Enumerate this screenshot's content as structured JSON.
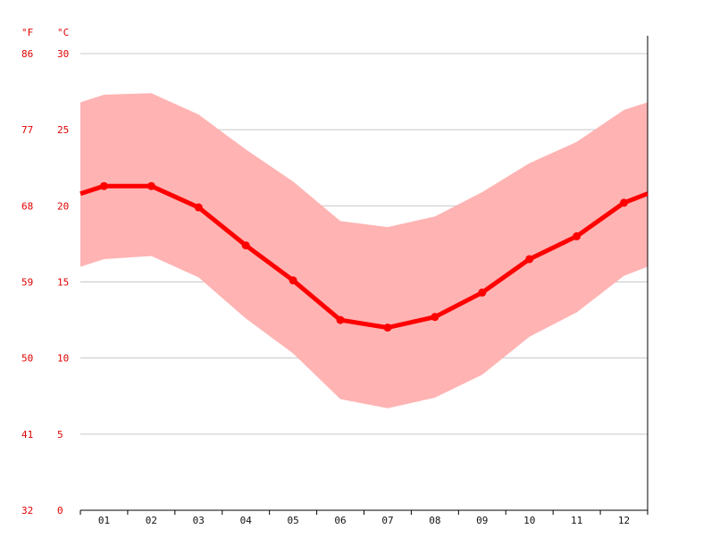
{
  "chart_data": {
    "type": "line",
    "title": "",
    "xlabel": "",
    "ylabel": "",
    "units": {
      "fahrenheit": "°F",
      "celsius": "°C"
    },
    "categories": [
      "01",
      "02",
      "03",
      "04",
      "05",
      "06",
      "07",
      "08",
      "09",
      "10",
      "11",
      "12"
    ],
    "series": [
      {
        "values": [
          21.3,
          21.3,
          19.9,
          17.4,
          15.1,
          12.5,
          12.0,
          12.7,
          14.3,
          16.5,
          18.0,
          20.2
        ]
      }
    ],
    "band": {
      "upper": [
        27.3,
        27.4,
        26.0,
        23.7,
        21.6,
        19.0,
        18.6,
        19.3,
        20.9,
        22.8,
        24.2,
        26.3
      ],
      "lower": [
        16.5,
        16.7,
        15.3,
        12.6,
        10.3,
        7.3,
        6.7,
        7.4,
        8.9,
        11.4,
        13.0,
        15.4
      ]
    },
    "edge_values": {
      "line": [
        20.8,
        20.8
      ],
      "upper": [
        26.8,
        26.8
      ],
      "lower": [
        16.0,
        16.0
      ]
    },
    "y_ticks_celsius": [
      "0",
      "5",
      "10",
      "15",
      "20",
      "25",
      "30"
    ],
    "y_ticks_fahrenheit": [
      "32",
      "41",
      "50",
      "59",
      "68",
      "77",
      "86"
    ],
    "ylim": [
      0,
      30
    ],
    "grid": true,
    "colors": {
      "line": "#ff0000",
      "band": "#ffb3b3",
      "label": "#e00000",
      "grid": "#c8c8c8",
      "axis": "#000000"
    }
  }
}
